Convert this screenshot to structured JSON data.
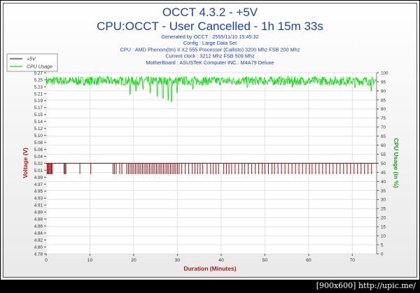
{
  "chart_data": {
    "type": "line",
    "title": "OCCT 4.3.2 - +5V",
    "subtitle": "CPU:OCCT - User Cancelled - 1h 15m 33s",
    "info_lines": [
      "Generated by OCCT : 2555/11/10 15:45:32",
      "Config : Large Data Set",
      "CPU : AMD Phenom(tm) II X2 555 Processor (Callisto) 3200 Mhz FSB 200 Mhz",
      "Current clock : 3212 Mhz FSB 509 Mhz",
      "MotherBoard : ASUSTeK Computer INC.: M4A79 Deluxe"
    ],
    "xlabel": "Duration (Minutes)",
    "ylabel": "Voltage (V)",
    "y2label": "CPU Usage (in %)",
    "xlim": [
      0,
      75.55
    ],
    "ylim": [
      4.78,
      5.28
    ],
    "y2lim": [
      0,
      100
    ],
    "x_ticks": [
      0,
      10,
      20,
      30,
      40,
      50,
      60,
      70
    ],
    "y_ticks": [
      "4.78",
      "4.80",
      "4.82",
      "4.84",
      "4.86",
      "4.88",
      "4.89",
      "4.91",
      "4.93",
      "4.95",
      "4.97",
      "4.99",
      "5.01",
      "5.02",
      "5.04",
      "5.06",
      "5.08",
      "5.10",
      "5.12",
      "5.14",
      "5.15",
      "5.17",
      "5.19",
      "5.21",
      "5.23",
      "5.25",
      "5.27"
    ],
    "y2_ticks": [
      0,
      5,
      10,
      15,
      20,
      25,
      30,
      35,
      40,
      45,
      50,
      55,
      60,
      65,
      70,
      75,
      80,
      85,
      90,
      95,
      100
    ],
    "grid": true,
    "legend_position": "top-left",
    "series": [
      {
        "name": "+5V",
        "color": "#a01010",
        "axis": "left",
        "baseline": 5.03,
        "dips_to": 5.0,
        "dip_minutes": [
          0.2,
          0.4,
          0.6,
          0.8,
          1.0,
          1.2,
          1.4,
          4.1,
          4.3,
          4.5,
          7.7,
          10.2,
          15.3,
          15.6,
          16.0,
          16.8,
          17.3,
          18.4,
          18.8,
          19.2,
          19.6,
          20.0,
          20.4,
          20.8,
          21.2,
          21.6,
          22.0,
          22.4,
          22.8,
          23.2,
          23.6,
          24.0,
          24.4,
          24.8,
          25.2,
          25.6,
          26.0,
          26.4,
          26.8,
          27.2,
          27.6,
          28.0,
          28.4,
          28.8,
          29.2,
          29.6,
          30.0,
          30.4,
          31.0,
          31.8,
          32.6,
          33.4,
          34.0,
          34.6,
          35.2,
          35.8,
          36.8,
          37.6,
          38.2,
          38.8,
          39.4,
          40.6,
          41.2,
          41.8,
          42.4,
          43.2,
          44.0,
          44.8,
          45.4,
          46.2,
          47.0,
          47.8,
          48.6,
          49.4,
          50.0,
          50.8,
          51.6,
          52.2,
          53.0,
          53.8,
          54.6,
          55.4,
          56.2,
          57.0,
          57.8,
          58.6,
          59.4,
          60.2,
          60.8,
          61.6,
          62.4,
          63.2,
          64.0,
          64.8,
          65.6,
          66.4,
          67.2,
          68.0,
          68.8,
          69.6,
          70.4,
          71.2,
          72.0,
          72.8,
          73.6,
          74.4
        ]
      },
      {
        "name": "CPU Usage",
        "color": "#10e010",
        "axis": "right",
        "base": 95.5,
        "jitter": 2.5,
        "dips": [
          [
            19.2,
            88
          ],
          [
            20.5,
            90
          ],
          [
            22.1,
            91
          ],
          [
            23.8,
            89
          ],
          [
            25.4,
            87
          ],
          [
            26.7,
            86
          ],
          [
            27.9,
            85
          ],
          [
            28.7,
            84
          ],
          [
            29.9,
            89
          ],
          [
            33.5,
            91
          ],
          [
            46.0,
            92
          ],
          [
            56.3,
            92
          ],
          [
            70.6,
            92
          ],
          [
            74.3,
            90
          ]
        ]
      }
    ]
  },
  "footer": {
    "text": "[900x600] http://upic.me/"
  }
}
